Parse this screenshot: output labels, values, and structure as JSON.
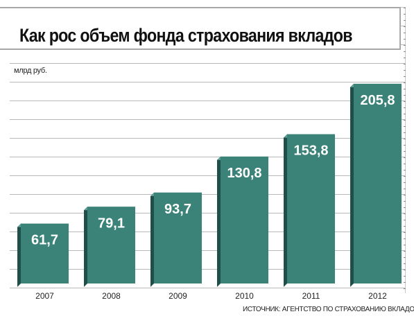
{
  "title": "Как рос объем фонда страхования вкладов",
  "unit_label": "млрд руб.",
  "source": "ИСТОЧНИК: АГЕНТСТВО ПО СТРАХОВАНИЮ ВКЛАДОВ",
  "colors": {
    "bar_face": "#3b8379",
    "bar_side": "#1e4f48",
    "bar_top": "#5e9e95"
  },
  "chart_data": {
    "type": "bar",
    "categories": [
      "2007",
      "2008",
      "2009",
      "2010",
      "2011",
      "2012"
    ],
    "values": [
      61.7,
      79.1,
      93.7,
      130.8,
      153.8,
      205.8
    ],
    "value_labels": [
      "61,7",
      "79,1",
      "93,7",
      "130,8",
      "153,8",
      "205,8"
    ],
    "title": "Как рос объем фонда страхования вкладов",
    "xlabel": "",
    "ylabel": "млрд руб.",
    "ylim": [
      0,
      240
    ],
    "grid": true,
    "legend": "none"
  }
}
